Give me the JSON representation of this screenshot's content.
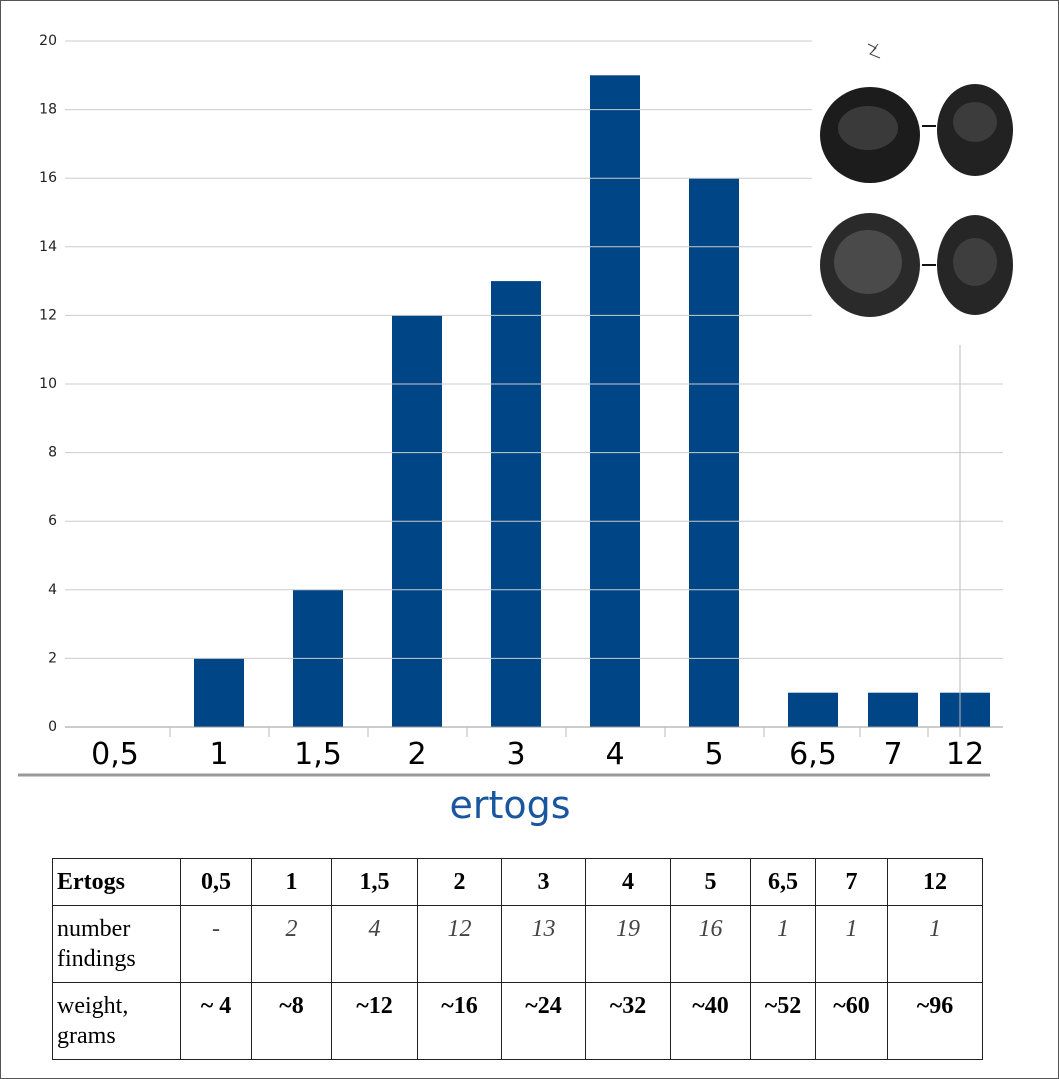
{
  "chart_data": {
    "type": "bar",
    "categories": [
      "0,5",
      "1",
      "1,5",
      "2",
      "3",
      "4",
      "5",
      "6,5",
      "7",
      "12"
    ],
    "values": [
      0,
      2,
      4,
      12,
      13,
      19,
      16,
      1,
      1,
      1
    ],
    "color": "#004586",
    "xlabel": "ertogs",
    "ylim": [
      0,
      20
    ],
    "yticks": [
      0,
      2,
      4,
      6,
      8,
      10,
      12,
      14,
      16,
      18,
      20
    ],
    "grid": true
  },
  "table": {
    "header": [
      "Ertogs",
      "0,5",
      "1",
      "1,5",
      "2",
      "3",
      "4",
      "5",
      "6,5",
      "7",
      "12"
    ],
    "rows": [
      [
        "number findings",
        "-",
        "2",
        "4",
        "12",
        "13",
        "19",
        "16",
        "1",
        "1",
        "1"
      ],
      [
        "weight, grams",
        "~ 4",
        "~8",
        "~12",
        "~16",
        "~24",
        "~32",
        "~40",
        "~52",
        "~60",
        "~96"
      ]
    ]
  }
}
